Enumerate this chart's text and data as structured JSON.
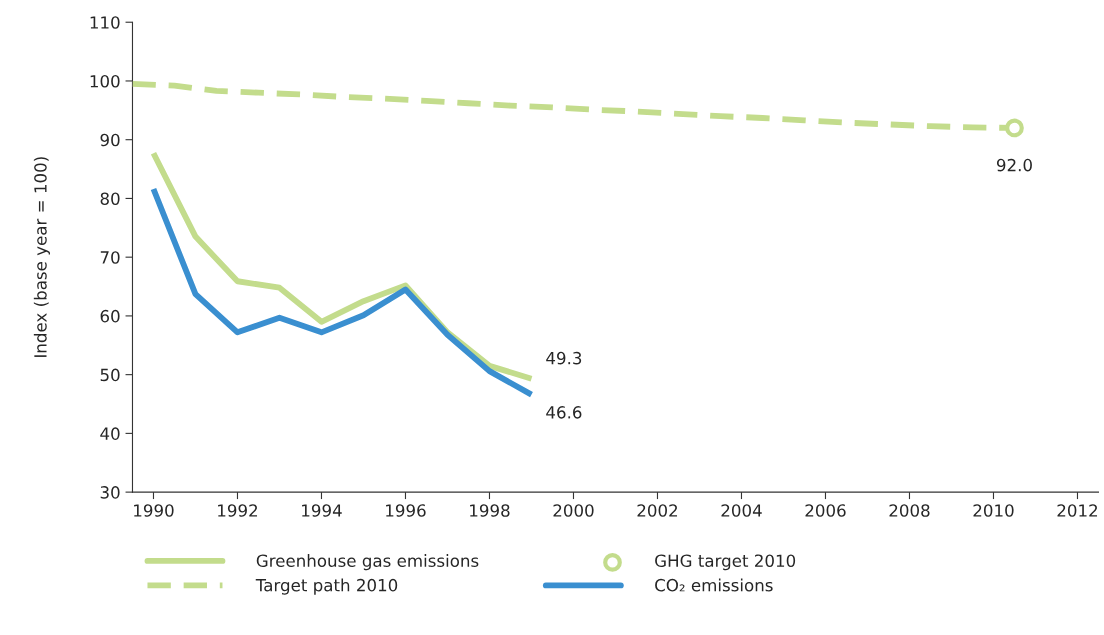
{
  "chart_data": {
    "type": "line",
    "ylabel": "Index (base year = 100)",
    "xlim": [
      1989.5,
      2012.5
    ],
    "xticks": [
      1990,
      1992,
      1994,
      1996,
      1998,
      2000,
      2002,
      2004,
      2006,
      2008,
      2010,
      2012
    ],
    "ylim": [
      30,
      110
    ],
    "yticks": [
      30,
      40,
      50,
      60,
      70,
      80,
      90,
      100,
      110
    ],
    "grid": false,
    "legend": "bottom",
    "series": [
      {
        "name": "Greenhouse gas emissions",
        "line_style": "solid",
        "color": "#c3dc8c",
        "x": [
          1990,
          1991,
          1992,
          1993,
          1994,
          1995,
          1996,
          1997,
          1998,
          1999
        ],
        "values": [
          87.7,
          73.5,
          65.9,
          64.8,
          59.0,
          62.5,
          65.2,
          57.2,
          51.5,
          49.3
        ],
        "value_labels": [
          null,
          null,
          null,
          null,
          null,
          null,
          null,
          null,
          null,
          "49.3"
        ]
      },
      {
        "name": "Target path 2010",
        "line_style": "dashed",
        "color": "#c3dc8c",
        "x": [
          1989.5,
          1990.5,
          1991.5,
          1992.5,
          1993.5,
          1994.5,
          1995.5,
          1996.5,
          1997.5,
          1998.5,
          1999.5,
          2000.5,
          2001.5,
          2002.5,
          2003.5,
          2004.5,
          2005.5,
          2006.5,
          2007.5,
          2008.5,
          2009.5,
          2010.5
        ],
        "values": [
          99.5,
          99.2,
          98.3,
          98.0,
          97.7,
          97.3,
          97.0,
          96.6,
          96.2,
          95.8,
          95.5,
          95.1,
          94.8,
          94.4,
          94.0,
          93.7,
          93.3,
          92.9,
          92.6,
          92.3,
          92.1,
          92.0
        ]
      },
      {
        "name": "GHG target 2010",
        "type": "scatter",
        "marker": "circle",
        "color": "#c3dc8c",
        "x": [
          2010.5
        ],
        "values": [
          92.0
        ],
        "value_labels": [
          "92.0"
        ]
      },
      {
        "name": "CO₂ emissions",
        "line_style": "solid",
        "color": "#3a8fd0",
        "x": [
          1990,
          1991,
          1992,
          1993,
          1994,
          1995,
          1996,
          1997,
          1998,
          1999
        ],
        "values": [
          81.6,
          63.7,
          57.2,
          59.7,
          57.2,
          60.1,
          64.5,
          56.8,
          50.6,
          46.6
        ],
        "value_labels": [
          null,
          null,
          null,
          null,
          null,
          null,
          null,
          null,
          null,
          "46.6"
        ]
      }
    ]
  }
}
